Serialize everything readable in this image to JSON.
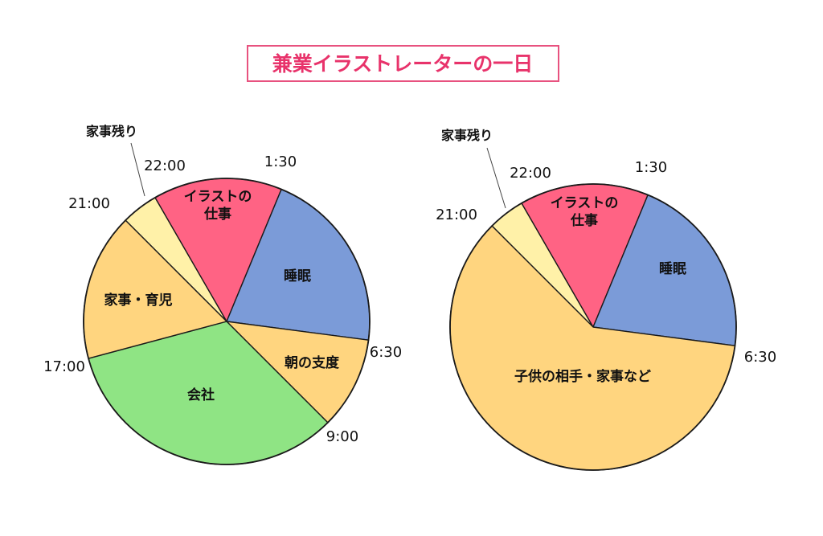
{
  "title": "兼業イラストレーターの一日",
  "chart_data": [
    {
      "type": "pie",
      "start_time": "21:00",
      "slices": [
        {
          "label": "家事残り",
          "start": "21:00",
          "end": "22:00",
          "hours": 1.0,
          "color": "#fff1a8"
        },
        {
          "label": "イラストの\n仕事",
          "start": "22:00",
          "end": "1:30",
          "hours": 3.5,
          "color": "#ff6384"
        },
        {
          "label": "睡眠",
          "start": "1:30",
          "end": "6:30",
          "hours": 5.0,
          "color": "#7b9bd8"
        },
        {
          "label": "朝の支度",
          "start": "6:30",
          "end": "9:00",
          "hours": 2.5,
          "color": "#ffd57f"
        },
        {
          "label": "会社",
          "start": "9:00",
          "end": "17:00",
          "hours": 8.0,
          "color": "#8fe484"
        },
        {
          "label": "家事・育児",
          "start": "17:00",
          "end": "21:00",
          "hours": 4.0,
          "color": "#ffd57f"
        }
      ],
      "time_labels": [
        "21:00",
        "22:00",
        "1:30",
        "6:30",
        "9:00",
        "17:00"
      ]
    },
    {
      "type": "pie",
      "start_time": "21:00",
      "slices": [
        {
          "label": "家事残り",
          "start": "21:00",
          "end": "22:00",
          "hours": 1.0,
          "color": "#fff1a8"
        },
        {
          "label": "イラストの\n仕事",
          "start": "22:00",
          "end": "1:30",
          "hours": 3.5,
          "color": "#ff6384"
        },
        {
          "label": "睡眠",
          "start": "1:30",
          "end": "6:30",
          "hours": 5.0,
          "color": "#7b9bd8"
        },
        {
          "label": "子供の相手・家事など",
          "start": "6:30",
          "end": "21:00",
          "hours": 14.5,
          "color": "#ffd57f"
        }
      ],
      "time_labels": [
        "21:00",
        "22:00",
        "1:30",
        "6:30"
      ]
    }
  ]
}
